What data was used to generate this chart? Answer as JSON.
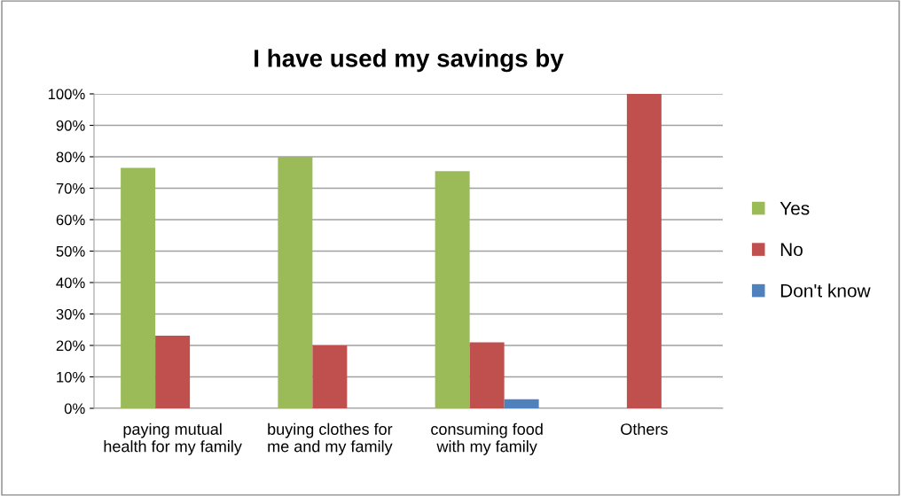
{
  "chart_data": {
    "type": "bar",
    "title": "I have used my savings by",
    "categories": [
      "paying mutual\nhealth for my family",
      "buying clothes for\nme and my family",
      "consuming food\nwith my family",
      "Others"
    ],
    "series": [
      {
        "name": "Yes",
        "color": "#9bbb59",
        "values": [
          76.5,
          80,
          75.4,
          null
        ]
      },
      {
        "name": "No",
        "color": "#c0504d",
        "values": [
          23.1,
          20,
          21,
          100
        ]
      },
      {
        "name": "Don't know",
        "color": "#4f81bd",
        "values": [
          null,
          null,
          2.9,
          null
        ]
      }
    ],
    "ylim": [
      0,
      100
    ],
    "yticks": [
      {
        "value": 0,
        "label": "0%"
      },
      {
        "value": 10,
        "label": "10%"
      },
      {
        "value": 20,
        "label": "20%"
      },
      {
        "value": 30,
        "label": "30%"
      },
      {
        "value": 40,
        "label": "40%"
      },
      {
        "value": 50,
        "label": "50%"
      },
      {
        "value": 60,
        "label": "60%"
      },
      {
        "value": 70,
        "label": "70%"
      },
      {
        "value": 80,
        "label": "80%"
      },
      {
        "value": 90,
        "label": "90%"
      },
      {
        "value": 100,
        "label": "100%"
      }
    ],
    "grid": "y",
    "legend": "right"
  }
}
